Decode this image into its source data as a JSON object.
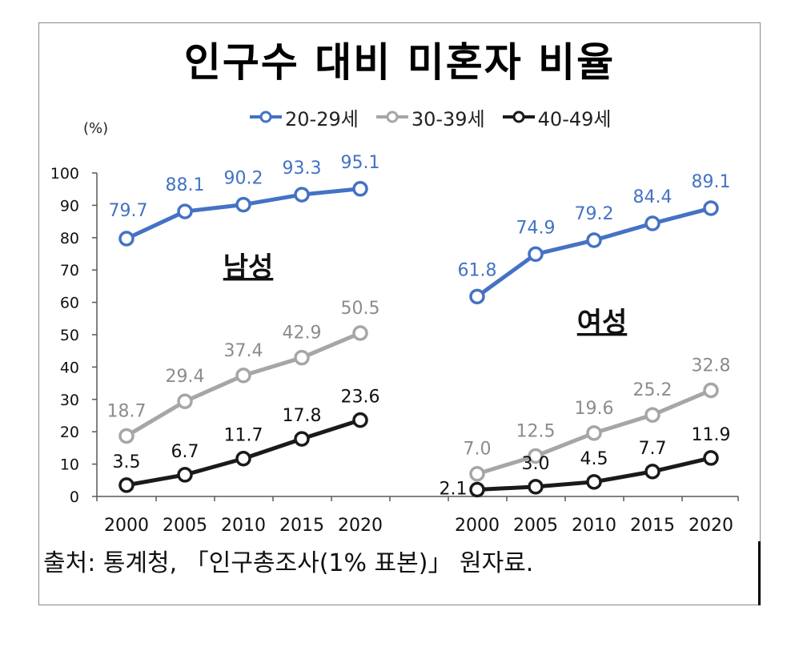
{
  "title": "인구수 대비 미혼자 비율",
  "unit": "(%)",
  "source": "출처: 통계청, 「인구총조사(1% 표본)」 원자료.",
  "legend": [
    {
      "name": "20-29세",
      "color": "#4472C4"
    },
    {
      "name": "30-39세",
      "color": "#A6A6A6"
    },
    {
      "name": "40-49세",
      "color": "#1A1A1A"
    }
  ],
  "chart_data": {
    "type": "line",
    "title": "인구수 대비 미혼자 비율",
    "ylabel": "(%)",
    "ylim": [
      0,
      100
    ],
    "yticks": [
      "0",
      "10",
      "20",
      "30",
      "40",
      "50",
      "60",
      "70",
      "80",
      "90",
      "100"
    ],
    "x": [
      "2000",
      "2005",
      "2010",
      "2015",
      "2020"
    ],
    "legend_position": "top",
    "panels": [
      {
        "name": "남성",
        "series": [
          {
            "name": "20-29세",
            "color": "#4472C4",
            "values": [
              79.7,
              88.1,
              90.2,
              93.3,
              95.1
            ],
            "labels": [
              "79.7",
              "88.1",
              "90.2",
              "93.3",
              "95.1"
            ]
          },
          {
            "name": "30-39세",
            "color": "#A6A6A6",
            "values": [
              18.7,
              29.4,
              37.4,
              42.9,
              50.5
            ],
            "labels": [
              "18.7",
              "29.4",
              "37.4",
              "42.9",
              "50.5"
            ]
          },
          {
            "name": "40-49세",
            "color": "#1A1A1A",
            "values": [
              3.5,
              6.7,
              11.7,
              17.8,
              23.6
            ],
            "labels": [
              "3.5",
              "6.7",
              "11.7",
              "17.8",
              "23.6"
            ]
          }
        ]
      },
      {
        "name": "여성",
        "series": [
          {
            "name": "20-29세",
            "color": "#4472C4",
            "values": [
              61.8,
              74.9,
              79.2,
              84.4,
              89.1
            ],
            "labels": [
              "61.8",
              "74.9",
              "79.2",
              "84.4",
              "89.1"
            ]
          },
          {
            "name": "30-39세",
            "color": "#A6A6A6",
            "values": [
              7.0,
              12.5,
              19.6,
              25.2,
              32.8
            ],
            "labels": [
              "7.0",
              "12.5",
              "19.6",
              "25.2",
              "32.8"
            ]
          },
          {
            "name": "40-49세",
            "color": "#1A1A1A",
            "values": [
              2.1,
              3.0,
              4.5,
              7.7,
              11.9
            ],
            "labels": [
              "2.1",
              "3.0",
              "4.5",
              "7.7",
              "11.9"
            ]
          }
        ]
      }
    ]
  }
}
